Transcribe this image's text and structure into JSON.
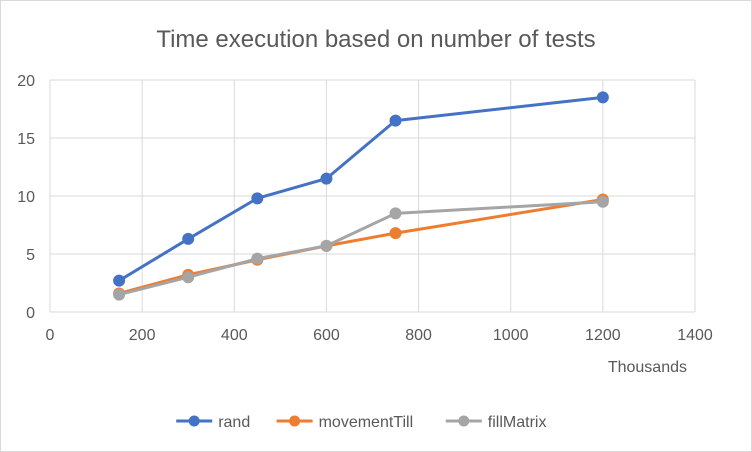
{
  "chart_data": {
    "type": "scatter",
    "title": "Time execution based on number of tests",
    "x_unit_label": "Thousands",
    "xlim": [
      0,
      1400
    ],
    "ylim": [
      0,
      20
    ],
    "x_ticks": [
      0,
      200,
      400,
      600,
      800,
      1000,
      1200,
      1400
    ],
    "y_ticks": [
      0,
      5,
      10,
      15,
      20
    ],
    "grid": true,
    "legend_position": "bottom",
    "series": [
      {
        "name": "rand",
        "color": "#4472C4",
        "x": [
          150,
          300,
          450,
          600,
          750,
          1200
        ],
        "y": [
          2.7,
          6.3,
          9.8,
          11.5,
          16.5,
          18.5
        ]
      },
      {
        "name": "movementTill",
        "color": "#ED7D31",
        "x": [
          150,
          300,
          450,
          600,
          750,
          1200
        ],
        "y": [
          1.6,
          3.2,
          4.5,
          5.7,
          6.8,
          9.7
        ]
      },
      {
        "name": "fillMatrix",
        "color": "#A5A5A5",
        "x": [
          150,
          300,
          450,
          600,
          750,
          1200
        ],
        "y": [
          1.5,
          3.0,
          4.6,
          5.7,
          8.5,
          9.5
        ]
      }
    ]
  }
}
